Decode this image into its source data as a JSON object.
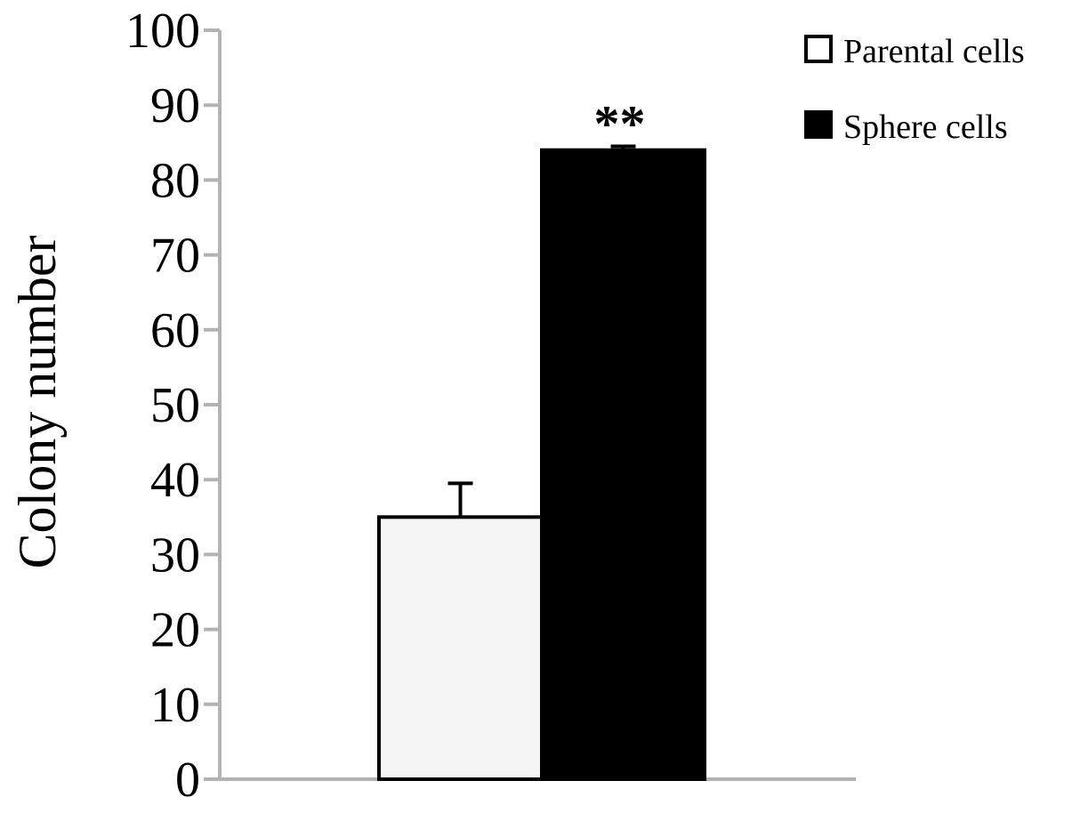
{
  "chart_data": {
    "type": "bar",
    "title": "",
    "xlabel": "",
    "ylabel": "Colony number",
    "ylim": [
      0,
      100
    ],
    "yticks": [
      "0",
      "10",
      "20",
      "30",
      "40",
      "50",
      "60",
      "70",
      "80",
      "90",
      "100"
    ],
    "grid": false,
    "legend_position": "top-right",
    "series": [
      {
        "name": "Parental cells",
        "value": 35,
        "error": 4.5,
        "color": "#f5f5f5",
        "annotation": ""
      },
      {
        "name": "Sphere cells",
        "value": 84,
        "error": 0.5,
        "color": "#000000",
        "annotation": "**"
      }
    ],
    "colors": {
      "axis": "#b3b3b3",
      "bar_border": "#000000"
    }
  }
}
